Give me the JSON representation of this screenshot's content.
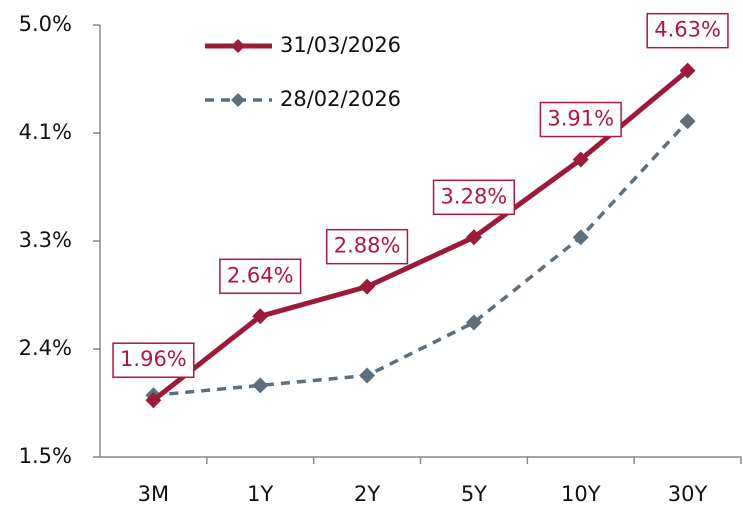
{
  "chart_data": {
    "type": "line",
    "categories": [
      "3M",
      "1Y",
      "2Y",
      "5Y",
      "10Y",
      "30Y"
    ],
    "series": [
      {
        "name": "31/03/2026",
        "color": "#9b1b3a",
        "line_style": "solid",
        "values": [
          1.96,
          2.64,
          2.88,
          3.28,
          3.91,
          4.63
        ],
        "value_labels": [
          "1.96%",
          "2.64%",
          "2.88%",
          "3.28%",
          "3.91%",
          "4.63%"
        ]
      },
      {
        "name": "28/02/2026",
        "color": "#5f6e7b",
        "line_style": "dashed",
        "values": [
          2.0,
          2.08,
          2.16,
          2.59,
          3.28,
          4.22
        ]
      }
    ],
    "ylim": [
      1.5,
      5.0
    ],
    "yticks": [
      {
        "value": 1.5,
        "label": "1.5%"
      },
      {
        "value": 2.375,
        "label": "2.4%"
      },
      {
        "value": 3.25,
        "label": "3.3%"
      },
      {
        "value": 4.125,
        "label": "4.1%"
      },
      {
        "value": 5.0,
        "label": "5.0%"
      }
    ],
    "legend": "top-left"
  }
}
